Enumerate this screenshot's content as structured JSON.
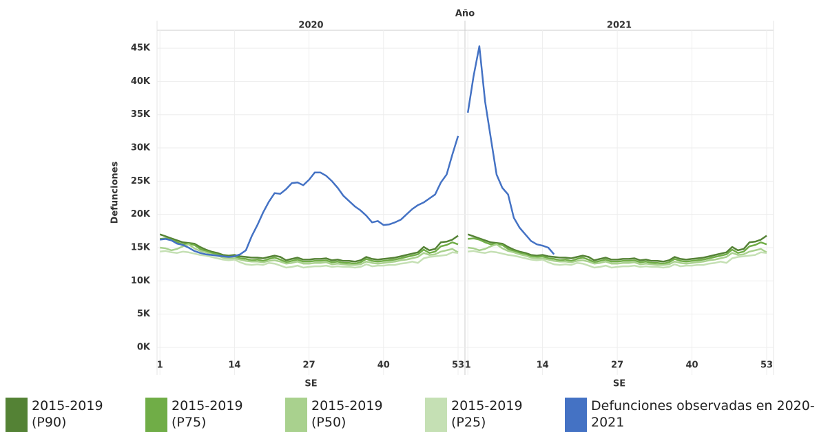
{
  "chart_data": {
    "type": "line",
    "header": "Año",
    "panels": [
      "2020",
      "2021"
    ],
    "x_label": "SE",
    "y_label": "Defunciones",
    "x": [
      1,
      2,
      3,
      4,
      5,
      6,
      7,
      8,
      9,
      10,
      11,
      12,
      13,
      14,
      15,
      16,
      17,
      18,
      19,
      20,
      21,
      22,
      23,
      24,
      25,
      26,
      27,
      28,
      29,
      30,
      31,
      32,
      33,
      34,
      35,
      36,
      37,
      38,
      39,
      40,
      41,
      42,
      43,
      44,
      45,
      46,
      47,
      48,
      49,
      50,
      51,
      52,
      53
    ],
    "xlim": [
      0.5,
      54.2
    ],
    "xticks": [
      1,
      14,
      27,
      40,
      53
    ],
    "ylim": [
      -1350,
      47700
    ],
    "yticks": [
      {
        "value": 0,
        "label": "0K"
      },
      {
        "value": 5000,
        "label": "5K"
      },
      {
        "value": 10000,
        "label": "10K"
      },
      {
        "value": 15000,
        "label": "15K"
      },
      {
        "value": 20000,
        "label": "20K"
      },
      {
        "value": 25000,
        "label": "25K"
      },
      {
        "value": 30000,
        "label": "30K"
      },
      {
        "value": 35000,
        "label": "35K"
      },
      {
        "value": 40000,
        "label": "40K"
      },
      {
        "value": 45000,
        "label": "45K"
      }
    ],
    "grid": true,
    "series": [
      {
        "name": "2015-2019 (P90)",
        "color": "#548235",
        "values": [
          [
            17000,
            16700,
            16400,
            16100,
            15800,
            15700,
            15600,
            15100,
            14700,
            14400,
            14200,
            13900,
            13800,
            13900,
            13700,
            13600,
            13500,
            13500,
            13400,
            13600,
            13800,
            13600,
            13100,
            13300,
            13500,
            13200,
            13200,
            13300,
            13300,
            13400,
            13100,
            13200,
            13000,
            13000,
            12900,
            13100,
            13600,
            13300,
            13200,
            13300,
            13400,
            13500,
            13700,
            13900,
            14100,
            14300,
            15100,
            14600,
            14800,
            15800,
            15900,
            16200,
            16800
          ],
          [
            17000,
            16700,
            16400,
            16100,
            15800,
            15700,
            15600,
            15100,
            14700,
            14400,
            14200,
            13900,
            13800,
            13900,
            13700,
            13600,
            13500,
            13500,
            13400,
            13600,
            13800,
            13600,
            13100,
            13300,
            13500,
            13200,
            13200,
            13300,
            13300,
            13400,
            13100,
            13200,
            13000,
            13000,
            12900,
            13100,
            13600,
            13300,
            13200,
            13300,
            13400,
            13500,
            13700,
            13900,
            14100,
            14300,
            15100,
            14600,
            14800,
            15800,
            15900,
            16200,
            16800
          ]
        ]
      },
      {
        "name": "2015-2019 (P75)",
        "color": "#70ad47",
        "values": [
          [
            16300,
            16400,
            16200,
            15800,
            15500,
            15600,
            15400,
            14800,
            14500,
            14200,
            14000,
            13700,
            13600,
            13700,
            13400,
            13300,
            13100,
            13200,
            13000,
            13300,
            13500,
            13200,
            12800,
            13000,
            13200,
            12900,
            12900,
            13000,
            13000,
            13100,
            12800,
            12900,
            12700,
            12700,
            12600,
            12800,
            13300,
            13000,
            12900,
            13000,
            13100,
            13200,
            13400,
            13600,
            13800,
            14000,
            14700,
            14200,
            14400,
            15200,
            15400,
            15800,
            15500
          ],
          [
            16300,
            16400,
            16200,
            15800,
            15500,
            15600,
            15400,
            14800,
            14500,
            14200,
            14000,
            13700,
            13600,
            13700,
            13400,
            13300,
            13100,
            13200,
            13000,
            13300,
            13500,
            13200,
            12800,
            13000,
            13200,
            12900,
            12900,
            13000,
            13000,
            13100,
            12800,
            12900,
            12700,
            12700,
            12600,
            12800,
            13300,
            13000,
            12900,
            13000,
            13100,
            13200,
            13400,
            13600,
            13800,
            14000,
            14700,
            14200,
            14400,
            15200,
            15400,
            15800,
            15500
          ]
        ]
      },
      {
        "name": "2015-2019 (P50)",
        "color": "#a9d18e",
        "values": [
          [
            15000,
            14900,
            14600,
            14800,
            15200,
            15500,
            14900,
            14500,
            14300,
            14000,
            13800,
            13500,
            13400,
            13400,
            13200,
            13000,
            12900,
            12900,
            12800,
            13000,
            13100,
            12900,
            12600,
            12700,
            12900,
            12600,
            12600,
            12700,
            12700,
            12800,
            12500,
            12600,
            12500,
            12400,
            12400,
            12500,
            12900,
            12700,
            12600,
            12700,
            12800,
            12900,
            13100,
            13200,
            13400,
            13600,
            14200,
            13900,
            14000,
            14400,
            14600,
            14800,
            14300
          ],
          [
            15000,
            14900,
            14600,
            14800,
            15200,
            15500,
            14900,
            14500,
            14300,
            14000,
            13800,
            13500,
            13400,
            13400,
            13200,
            13000,
            12900,
            12900,
            12800,
            13000,
            13100,
            12900,
            12600,
            12700,
            12900,
            12600,
            12600,
            12700,
            12700,
            12800,
            12500,
            12600,
            12500,
            12400,
            12400,
            12500,
            12900,
            12700,
            12600,
            12700,
            12800,
            12900,
            13100,
            13200,
            13400,
            13600,
            14200,
            13900,
            14000,
            14400,
            14600,
            14800,
            14300
          ]
        ]
      },
      {
        "name": "2015-2019 (P25)",
        "color": "#c5e0b4",
        "values": [
          [
            14400,
            14500,
            14300,
            14200,
            14400,
            14300,
            14100,
            13900,
            13800,
            13600,
            13400,
            13200,
            13100,
            13200,
            12800,
            12500,
            12400,
            12500,
            12400,
            12700,
            12600,
            12300,
            12000,
            12100,
            12300,
            12000,
            12100,
            12200,
            12200,
            12300,
            12100,
            12200,
            12100,
            12100,
            12000,
            12100,
            12500,
            12200,
            12300,
            12300,
            12400,
            12400,
            12600,
            12700,
            12900,
            12700,
            13400,
            13600,
            13700,
            13800,
            13900,
            14300,
            14200
          ],
          [
            14400,
            14500,
            14300,
            14200,
            14400,
            14300,
            14100,
            13900,
            13800,
            13600,
            13400,
            13200,
            13100,
            13200,
            12800,
            12500,
            12400,
            12500,
            12400,
            12700,
            12600,
            12300,
            12000,
            12100,
            12300,
            12000,
            12100,
            12200,
            12200,
            12300,
            12100,
            12200,
            12100,
            12100,
            12000,
            12100,
            12500,
            12200,
            12300,
            12300,
            12400,
            12400,
            12600,
            12700,
            12900,
            12700,
            13400,
            13600,
            13700,
            13800,
            13900,
            14300,
            14200
          ]
        ]
      },
      {
        "name": "Defunciones observadas en 2020-2021",
        "color": "#4472c4",
        "values": [
          [
            16200,
            16300,
            16100,
            15600,
            15400,
            15000,
            14500,
            14200,
            14000,
            13900,
            13800,
            13700,
            13600,
            13700,
            14000,
            14600,
            16700,
            18400,
            20300,
            21900,
            23200,
            23100,
            23800,
            24700,
            24800,
            24400,
            25200,
            26300,
            26300,
            25800,
            25000,
            24000,
            22800,
            22000,
            21200,
            20600,
            19800,
            18800,
            19000,
            18400,
            18500,
            18800,
            19200,
            20000,
            20800,
            21400,
            21800,
            22400,
            23000,
            24800,
            26000,
            29000,
            31800
          ],
          [
            35300,
            40800,
            45300,
            37000,
            31500,
            26000,
            24000,
            23000,
            19500,
            18000,
            17000,
            16000,
            15500,
            15300,
            15000,
            14000,
            null,
            null,
            null,
            null,
            null,
            null,
            null,
            null,
            null,
            null,
            null,
            null,
            null,
            null,
            null,
            null,
            null,
            null,
            null,
            null,
            null,
            null,
            null,
            null,
            null,
            null,
            null,
            null,
            null,
            null,
            null,
            null,
            null,
            null,
            null,
            null,
            null
          ]
        ]
      }
    ]
  }
}
